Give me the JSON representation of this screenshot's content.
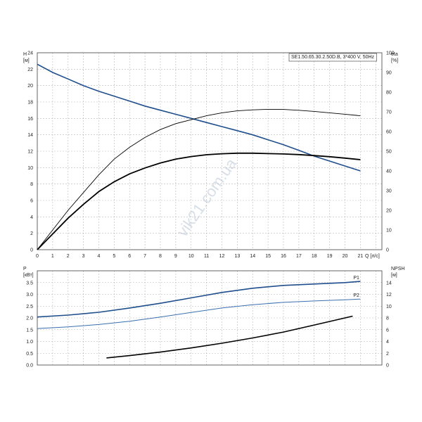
{
  "watermark": "vik21.com.ua",
  "colors": {
    "blue": "#1f4e8c",
    "light_blue": "#3a6fb0",
    "black": "#000000",
    "grid": "#b8b8b8"
  },
  "chart_data": [
    {
      "type": "line",
      "title": "SE1.50.65.30.2.50D.B, 3*400 V, 50Hz",
      "xlabel": "Q [л/с]",
      "ylabel_left": "H [м]",
      "ylabel_right": "eta [%]",
      "xlim": [
        0,
        21
      ],
      "ylim_left": [
        0,
        24
      ],
      "ylim_right": [
        0,
        100
      ],
      "x_ticks": [
        "0",
        "1",
        "2",
        "3",
        "4",
        "5",
        "6",
        "7",
        "8",
        "9",
        "10",
        "11",
        "12",
        "13",
        "14",
        "15",
        "16",
        "17",
        "18",
        "19",
        "20",
        "21"
      ],
      "y_ticks_left": [
        "0",
        "2",
        "4",
        "6",
        "8",
        "10",
        "12",
        "14",
        "16",
        "18",
        "20",
        "22",
        "24"
      ],
      "y_ticks_right": [
        "0",
        "10",
        "20",
        "30",
        "40",
        "50",
        "60",
        "70",
        "80",
        "90",
        "100"
      ],
      "grid": true,
      "series": [
        {
          "axis": "left",
          "color": "#1f4e8c",
          "x": [
            0,
            1,
            2,
            3,
            4,
            5,
            6,
            7,
            8,
            9,
            10,
            11,
            12,
            13,
            14,
            15,
            16,
            17,
            18,
            19,
            20,
            21
          ],
          "y": [
            22.6,
            21.6,
            20.8,
            20.0,
            19.3,
            18.7,
            18.1,
            17.5,
            17.0,
            16.5,
            16.0,
            15.5,
            15.0,
            14.5,
            14.0,
            13.4,
            12.8,
            12.1,
            11.4,
            10.8,
            10.2,
            9.6
          ]
        },
        {
          "axis": "right",
          "color": "#000000",
          "x": [
            0,
            1,
            2,
            3,
            4,
            5,
            6,
            7,
            8,
            9,
            10,
            11,
            12,
            13,
            14,
            15,
            16,
            17,
            18,
            19,
            20,
            21
          ],
          "y": [
            0,
            10,
            20,
            29,
            38,
            46,
            52,
            57,
            61,
            64,
            66,
            68,
            69.5,
            70.5,
            71,
            71.3,
            71.2,
            70.8,
            70.2,
            69.5,
            68.8,
            68
          ]
        },
        {
          "axis": "right",
          "color": "#000000",
          "x": [
            0,
            1,
            2,
            3,
            4,
            5,
            6,
            7,
            8,
            9,
            10,
            11,
            12,
            13,
            14,
            15,
            16,
            17,
            18,
            19,
            20,
            21
          ],
          "y": [
            0,
            8,
            16,
            23,
            29.5,
            34.5,
            38.5,
            41.5,
            44,
            46,
            47.3,
            48.2,
            48.7,
            49,
            49,
            48.8,
            48.6,
            48.3,
            47.8,
            47.2,
            46.5,
            45.7
          ]
        }
      ]
    },
    {
      "type": "line",
      "ylabel_left": "P [кВт]",
      "ylabel_right": "NPSH [м]",
      "xlim": [
        0,
        21
      ],
      "ylim_left": [
        0,
        4
      ],
      "ylim_right": [
        0,
        16
      ],
      "y_ticks_left": [
        "0.0",
        "0.5",
        "1.0",
        "1.5",
        "2.0",
        "2.5",
        "3.0",
        "3.5"
      ],
      "y_ticks_right": [
        "0",
        "2",
        "4",
        "6",
        "8",
        "10",
        "12",
        "14"
      ],
      "grid": true,
      "series": [
        {
          "name": "P1",
          "axis": "left",
          "color": "#1f4e8c",
          "x": [
            0,
            2,
            4,
            6,
            8,
            10,
            12,
            14,
            16,
            18,
            20,
            21
          ],
          "y": [
            2.04,
            2.12,
            2.24,
            2.42,
            2.62,
            2.85,
            3.08,
            3.26,
            3.38,
            3.44,
            3.5,
            3.55
          ]
        },
        {
          "name": "P2",
          "axis": "left",
          "color": "#3a6fb0",
          "x": [
            0,
            2,
            4,
            6,
            8,
            10,
            12,
            14,
            16,
            18,
            20,
            21
          ],
          "y": [
            1.55,
            1.62,
            1.72,
            1.86,
            2.04,
            2.23,
            2.42,
            2.56,
            2.66,
            2.72,
            2.77,
            2.8
          ]
        },
        {
          "axis": "right",
          "color": "#000000",
          "x": [
            4.5,
            6,
            8,
            10,
            12,
            14,
            16,
            18,
            20.5
          ],
          "y": [
            1.2,
            1.6,
            2.2,
            2.9,
            3.7,
            4.6,
            5.6,
            6.8,
            8.3
          ]
        }
      ]
    }
  ]
}
